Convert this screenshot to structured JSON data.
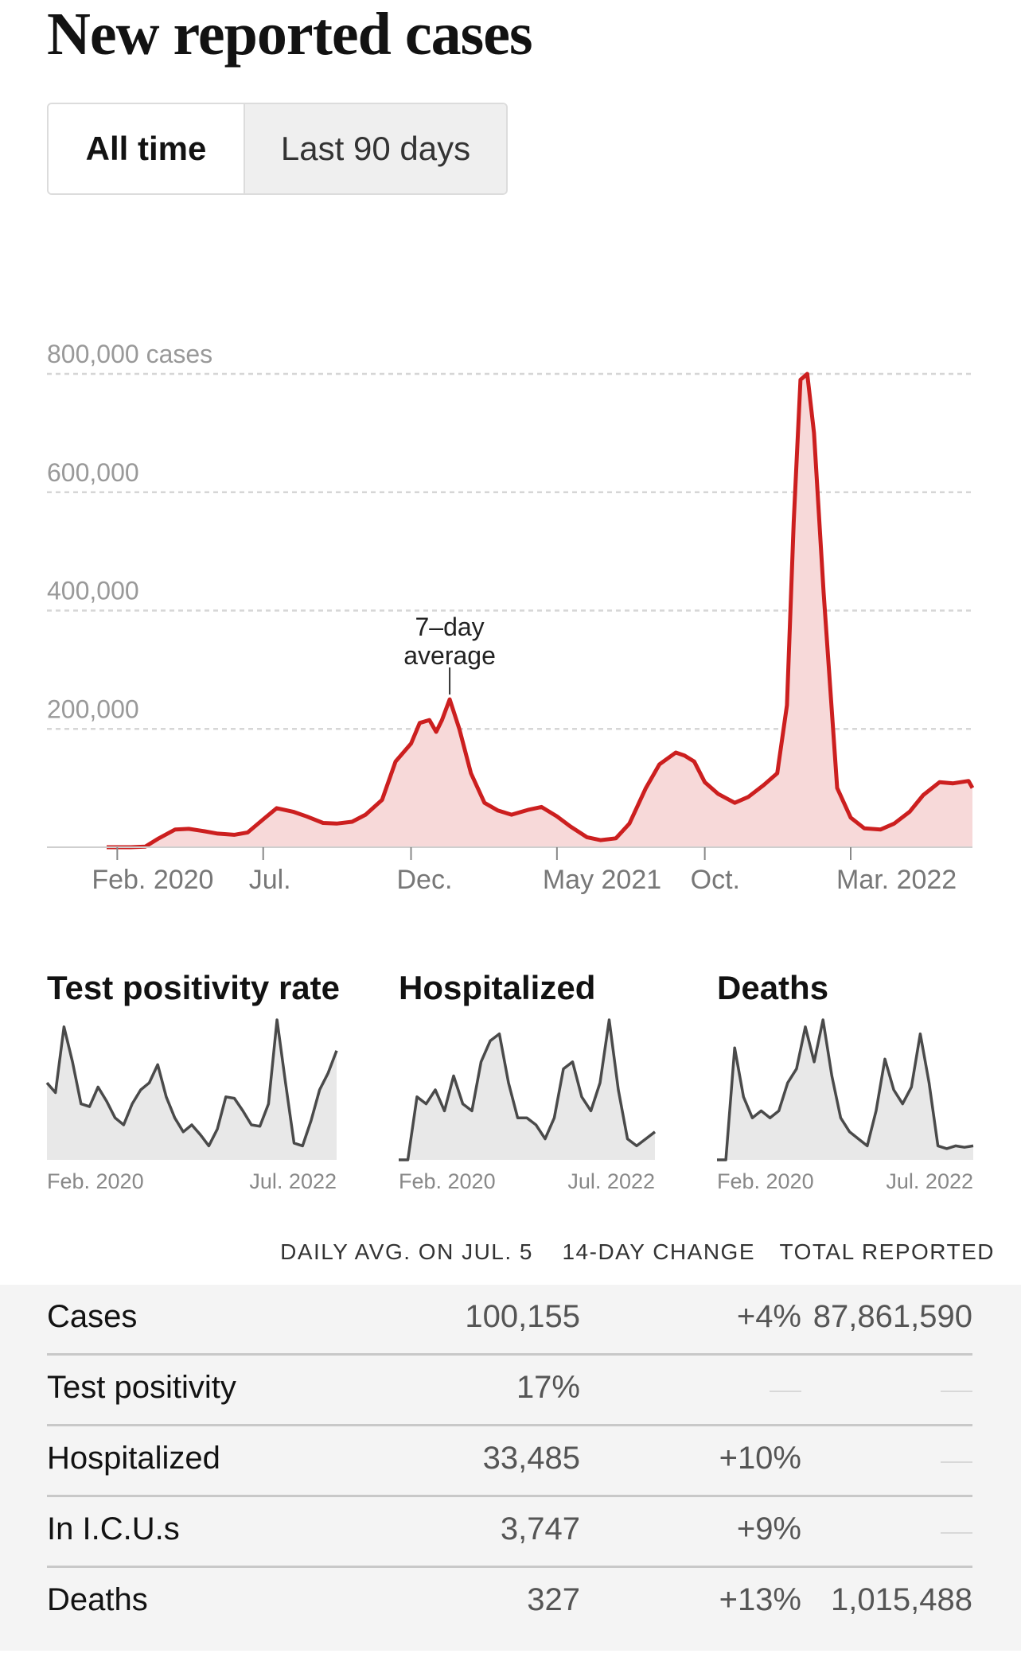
{
  "title": "New reported cases",
  "toggle": {
    "options": [
      "All time",
      "Last 90 days"
    ],
    "selected": "All time"
  },
  "colors": {
    "cases_line": "#cc1f1f",
    "cases_fill": "#f7d9d9",
    "mini_line": "#4a4a4a",
    "mini_fill": "#e8e8e8",
    "grid": "#d6d6d6"
  },
  "chart_data": {
    "type": "area",
    "ylim": [
      0,
      800000
    ],
    "y_ticks": [
      {
        "value": 200000,
        "label": "200,000"
      },
      {
        "value": 400000,
        "label": "400,000"
      },
      {
        "value": 600000,
        "label": "600,000"
      },
      {
        "value": 800000,
        "label": "800,000 cases"
      }
    ],
    "x_ticks": [
      {
        "x": "2020-02",
        "label": "Feb. 2020"
      },
      {
        "x": "2020-07",
        "label": "Jul."
      },
      {
        "x": "2020-12",
        "label": "Dec."
      },
      {
        "x": "2021-05",
        "label": "May 2021"
      },
      {
        "x": "2021-10",
        "label": "Oct."
      },
      {
        "x": "2022-03",
        "label": "Mar. 2022"
      }
    ],
    "annotation": {
      "text": [
        "7–day",
        "average"
      ],
      "x": "2021-01-10",
      "y": 250000
    },
    "x": [
      "2020-01-21",
      "2020-02-15",
      "2020-03-01",
      "2020-03-15",
      "2020-04-01",
      "2020-04-15",
      "2020-05-01",
      "2020-05-15",
      "2020-06-01",
      "2020-06-15",
      "2020-07-01",
      "2020-07-15",
      "2020-08-01",
      "2020-08-15",
      "2020-09-01",
      "2020-09-15",
      "2020-10-01",
      "2020-10-15",
      "2020-11-01",
      "2020-11-15",
      "2020-12-01",
      "2020-12-10",
      "2020-12-20",
      "2020-12-27",
      "2021-01-02",
      "2021-01-10",
      "2021-01-20",
      "2021-02-01",
      "2021-02-15",
      "2021-03-01",
      "2021-03-15",
      "2021-04-01",
      "2021-04-15",
      "2021-05-01",
      "2021-05-15",
      "2021-06-01",
      "2021-06-15",
      "2021-07-01",
      "2021-07-15",
      "2021-08-01",
      "2021-08-15",
      "2021-09-01",
      "2021-09-10",
      "2021-09-20",
      "2021-10-01",
      "2021-10-15",
      "2021-11-01",
      "2021-11-15",
      "2021-12-01",
      "2021-12-15",
      "2021-12-25",
      "2022-01-01",
      "2022-01-08",
      "2022-01-15",
      "2022-01-22",
      "2022-02-01",
      "2022-02-15",
      "2022-03-01",
      "2022-03-15",
      "2022-04-01",
      "2022-04-15",
      "2022-05-01",
      "2022-05-15",
      "2022-06-01",
      "2022-06-15",
      "2022-07-01",
      "2022-07-05"
    ],
    "values": [
      0,
      0,
      1000,
      15000,
      30000,
      31000,
      27000,
      23000,
      21000,
      25000,
      47000,
      66000,
      60000,
      52000,
      41000,
      40000,
      43000,
      55000,
      80000,
      145000,
      175000,
      210000,
      215000,
      195000,
      215000,
      250000,
      200000,
      125000,
      75000,
      62000,
      55000,
      63000,
      68000,
      52000,
      35000,
      17000,
      12000,
      15000,
      40000,
      100000,
      140000,
      160000,
      155000,
      145000,
      110000,
      90000,
      75000,
      85000,
      105000,
      125000,
      240000,
      550000,
      790000,
      800000,
      700000,
      430000,
      100000,
      50000,
      32000,
      30000,
      40000,
      60000,
      88000,
      110000,
      108000,
      112000,
      100155
    ],
    "series_name": "7–day average"
  },
  "mini_charts": [
    {
      "title": "Test positivity rate",
      "start_label": "Feb. 2020",
      "end_label": "Jul. 2022",
      "values": [
        0.55,
        0.48,
        0.95,
        0.7,
        0.4,
        0.38,
        0.52,
        0.42,
        0.3,
        0.25,
        0.4,
        0.5,
        0.55,
        0.68,
        0.45,
        0.3,
        0.2,
        0.25,
        0.18,
        0.1,
        0.22,
        0.45,
        0.44,
        0.35,
        0.25,
        0.24,
        0.4,
        1.0,
        0.55,
        0.12,
        0.1,
        0.28,
        0.5,
        0.62,
        0.78
      ]
    },
    {
      "title": "Hospitalized",
      "start_label": "Feb. 2020",
      "end_label": "Jul. 2022",
      "values": [
        0,
        0,
        0.45,
        0.4,
        0.5,
        0.35,
        0.6,
        0.4,
        0.35,
        0.7,
        0.85,
        0.9,
        0.55,
        0.3,
        0.3,
        0.25,
        0.15,
        0.3,
        0.65,
        0.7,
        0.45,
        0.35,
        0.55,
        1.0,
        0.5,
        0.15,
        0.1,
        0.15,
        0.2
      ]
    },
    {
      "title": "Deaths",
      "start_label": "Feb. 2020",
      "end_label": "Jul. 2022",
      "values": [
        0,
        0,
        0.8,
        0.45,
        0.3,
        0.35,
        0.3,
        0.35,
        0.55,
        0.65,
        0.95,
        0.7,
        1.0,
        0.6,
        0.3,
        0.2,
        0.15,
        0.1,
        0.35,
        0.72,
        0.5,
        0.4,
        0.52,
        0.9,
        0.55,
        0.1,
        0.08,
        0.1,
        0.09,
        0.1
      ]
    }
  ],
  "table": {
    "headers": [
      "DAILY AVG. ON JUL. 5",
      "14-DAY CHANGE",
      "TOTAL REPORTED"
    ],
    "rows": [
      {
        "label": "Cases",
        "avg": "100,155",
        "change": "+4%",
        "total": "87,861,590"
      },
      {
        "label": "Test positivity",
        "avg": "17%",
        "change": null,
        "total": null
      },
      {
        "label": "Hospitalized",
        "avg": "33,485",
        "change": "+10%",
        "total": null
      },
      {
        "label": "In I.C.U.s",
        "avg": "3,747",
        "change": "+9%",
        "total": null
      },
      {
        "label": "Deaths",
        "avg": "327",
        "change": "+13%",
        "total": "1,015,488"
      }
    ]
  }
}
